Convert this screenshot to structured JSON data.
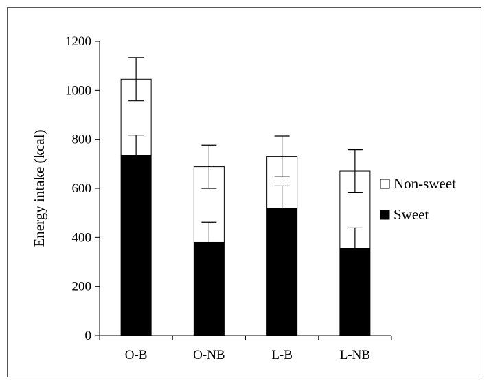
{
  "chart_data": {
    "type": "bar",
    "stacked": true,
    "title": "",
    "xlabel": "",
    "ylabel": "Energy intake (kcal)",
    "ylim": [
      0,
      1200
    ],
    "yticks": [
      0,
      200,
      400,
      600,
      800,
      1000,
      1200
    ],
    "categories": [
      "O-B",
      "O-NB",
      "L-B",
      "L-NB"
    ],
    "series": [
      {
        "name": "Sweet",
        "color": "#000000",
        "values": [
          735,
          380,
          520,
          357
        ],
        "error": [
          82,
          82,
          90,
          82
        ]
      },
      {
        "name": "Non-sweet",
        "color": "#ffffff",
        "values": [
          310,
          308,
          210,
          313
        ],
        "error": [
          88,
          88,
          83,
          88
        ]
      }
    ],
    "grid": false,
    "legend": "right"
  }
}
